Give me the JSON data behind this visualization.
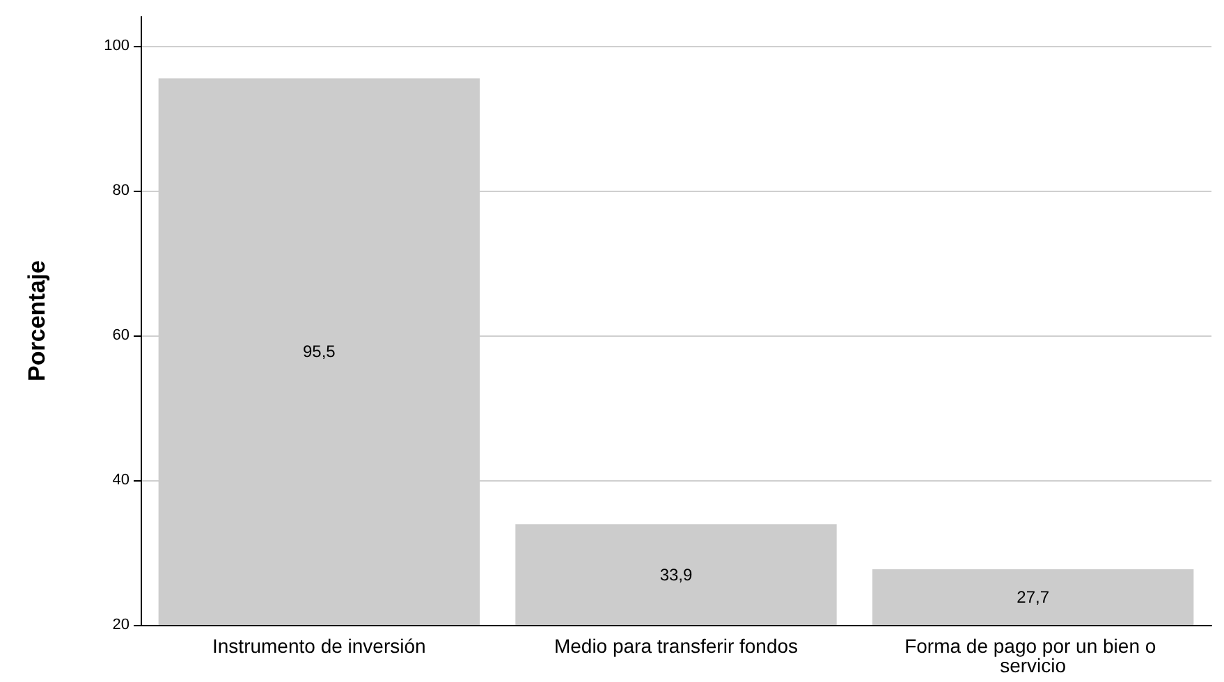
{
  "chart_data": {
    "type": "bar",
    "ylabel": "Porcentaje",
    "categories": [
      "Instrumento de inversión",
      "Medio para transferir fondos",
      "Forma de pago por un bien o servicio"
    ],
    "values": [
      95.5,
      33.9,
      27.7
    ],
    "value_labels": [
      "95,5",
      "33,9",
      "27,7"
    ],
    "color": "#cccccc",
    "ylim": [
      20,
      104
    ],
    "yticks": [
      20,
      40,
      60,
      80,
      100
    ],
    "grid": "y"
  }
}
